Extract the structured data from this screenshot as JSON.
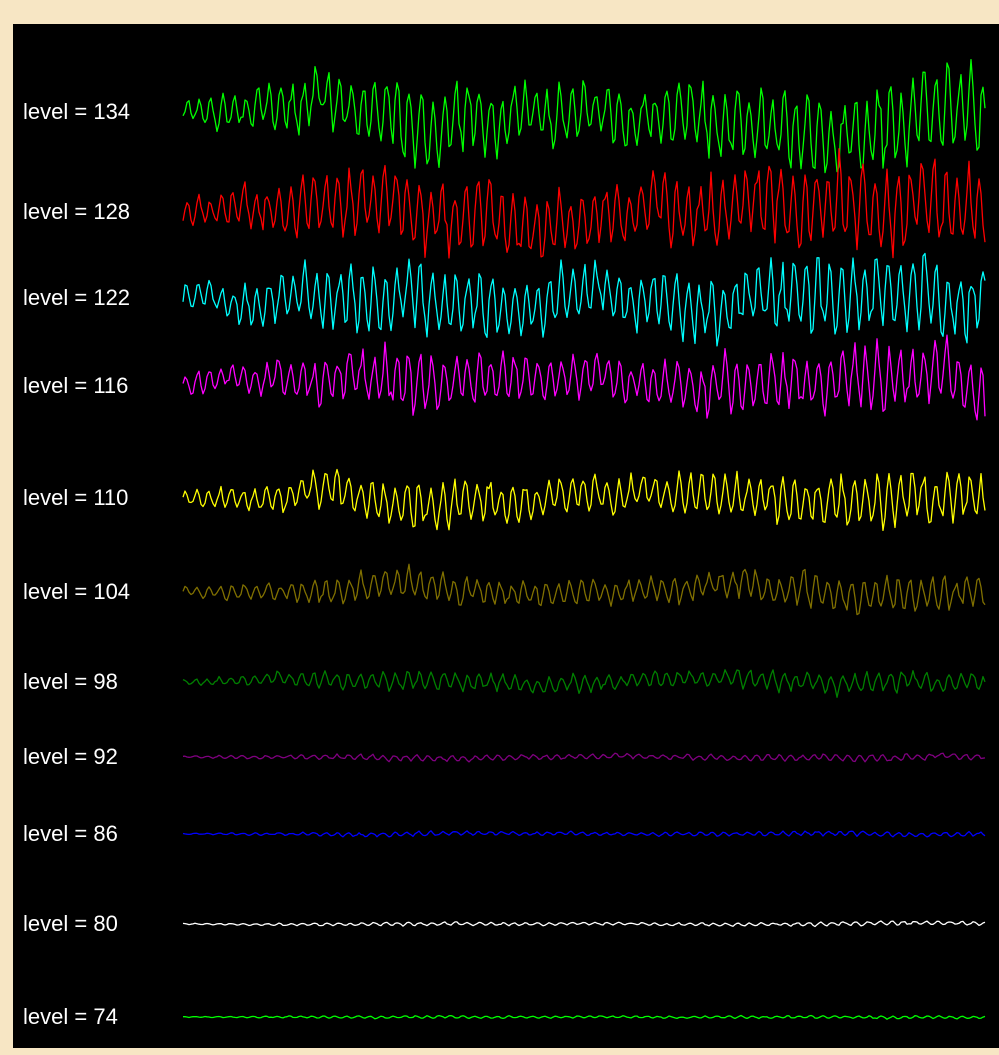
{
  "chart_data": {
    "type": "line",
    "label_prefix": "level = ",
    "background": "#000000",
    "frame_color": "#f7e6c4",
    "grid": false,
    "legend": "none",
    "series": [
      {
        "level": "134",
        "color": "#00ff00",
        "amplitude": 0.85
      },
      {
        "level": "128",
        "color": "#ff0000",
        "amplitude": 0.85
      },
      {
        "level": "122",
        "color": "#00ffff",
        "amplitude": 0.78
      },
      {
        "level": "116",
        "color": "#ff00ff",
        "amplitude": 0.64
      },
      {
        "level": "110",
        "color": "#ffff00",
        "amplitude": 0.52
      },
      {
        "level": "104",
        "color": "#807000",
        "amplitude": 0.34
      },
      {
        "level": "98",
        "color": "#008000",
        "amplitude": 0.21
      },
      {
        "level": "92",
        "color": "#800080",
        "amplitude": 0.07
      },
      {
        "level": "86",
        "color": "#0000ff",
        "amplitude": 0.05
      },
      {
        "level": "80",
        "color": "#ffffff",
        "amplitude": 0.04
      },
      {
        "level": "74",
        "color": "#00ff00",
        "amplitude": 0.03
      }
    ]
  }
}
